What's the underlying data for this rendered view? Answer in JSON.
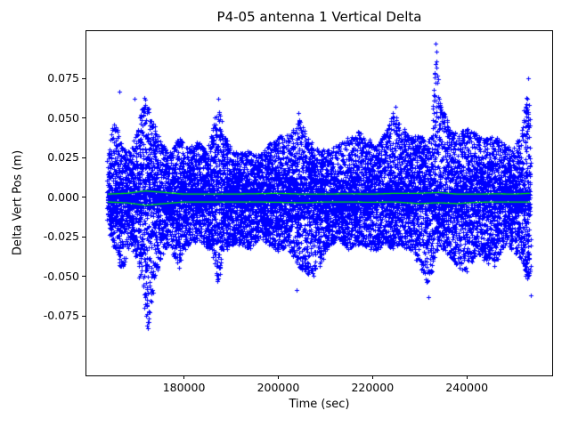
{
  "chart_data": {
    "type": "scatter",
    "title": "P4-05 antenna 1 Vertical Delta",
    "xlabel": "Time (sec)",
    "ylabel": "Delta Vert Pos (m)",
    "xlim": [
      159300,
      258100
    ],
    "ylim": [
      -0.1126,
      0.105
    ],
    "xticks": [
      180000,
      200000,
      220000,
      240000
    ],
    "xtick_labels": [
      "180000",
      "200000",
      "220000",
      "240000"
    ],
    "yticks": [
      -0.075,
      -0.05,
      -0.025,
      0.0,
      0.025,
      0.05,
      0.075
    ],
    "ytick_labels": [
      "-0.075",
      "-0.050",
      "-0.025",
      "0.000",
      "0.025",
      "0.050",
      "0.075"
    ],
    "marker": "+",
    "marker_color": "#0000ff",
    "smooth_line_color": "#00e400",
    "grid": false,
    "legend": "none",
    "t_range": [
      163800,
      253600
    ],
    "envelope": {
      "t": [
        163800,
        165000,
        166000,
        167000,
        168000,
        169000,
        170000,
        171000,
        172000,
        172600,
        173500,
        175000,
        177000,
        179000,
        181000,
        183000,
        185000,
        186500,
        187300,
        188500,
        190000,
        192000,
        194000,
        196000,
        198000,
        200000,
        202000,
        203500,
        204500,
        206000,
        207500,
        209000,
        211000,
        213000,
        215000,
        217000,
        219000,
        221000,
        223000,
        224500,
        226000,
        228000,
        230000,
        231500,
        232500,
        233500,
        234500,
        236000,
        238000,
        240000,
        242000,
        244000,
        246000,
        248000,
        250000,
        251500,
        253000,
        253600
      ],
      "up": [
        0.022,
        0.05,
        0.045,
        0.032,
        0.028,
        0.032,
        0.04,
        0.058,
        0.063,
        0.055,
        0.048,
        0.036,
        0.028,
        0.038,
        0.032,
        0.035,
        0.03,
        0.048,
        0.058,
        0.04,
        0.03,
        0.028,
        0.03,
        0.026,
        0.034,
        0.038,
        0.04,
        0.046,
        0.05,
        0.038,
        0.034,
        0.03,
        0.03,
        0.034,
        0.038,
        0.042,
        0.037,
        0.034,
        0.042,
        0.055,
        0.046,
        0.038,
        0.04,
        0.036,
        0.04,
        0.09,
        0.06,
        0.048,
        0.04,
        0.044,
        0.041,
        0.037,
        0.039,
        0.034,
        0.031,
        0.04,
        0.068,
        0.055
      ],
      "lo": [
        -0.018,
        -0.03,
        -0.04,
        -0.048,
        -0.035,
        -0.03,
        -0.04,
        -0.055,
        -0.078,
        -0.083,
        -0.06,
        -0.04,
        -0.03,
        -0.046,
        -0.03,
        -0.027,
        -0.032,
        -0.04,
        -0.056,
        -0.036,
        -0.03,
        -0.03,
        -0.033,
        -0.026,
        -0.03,
        -0.034,
        -0.032,
        -0.04,
        -0.044,
        -0.048,
        -0.05,
        -0.044,
        -0.03,
        -0.027,
        -0.033,
        -0.03,
        -0.032,
        -0.034,
        -0.03,
        -0.034,
        -0.03,
        -0.034,
        -0.042,
        -0.055,
        -0.05,
        -0.035,
        -0.032,
        -0.036,
        -0.044,
        -0.048,
        -0.036,
        -0.04,
        -0.044,
        -0.03,
        -0.034,
        -0.04,
        -0.055,
        -0.048
      ]
    },
    "outliers": [
      [
        166200,
        0.067
      ],
      [
        169500,
        0.062
      ],
      [
        171600,
        0.063
      ],
      [
        172300,
        -0.083
      ],
      [
        187300,
        0.062
      ],
      [
        203900,
        -0.0585
      ],
      [
        204200,
        0.053
      ],
      [
        224800,
        0.057
      ],
      [
        231900,
        -0.063
      ],
      [
        233400,
        0.097
      ],
      [
        233600,
        0.092
      ],
      [
        253000,
        0.075
      ],
      [
        253500,
        -0.062
      ]
    ],
    "smooth_lines": {
      "t": [
        163800,
        168000,
        172000,
        176000,
        180000,
        185000,
        190000,
        195000,
        200000,
        205000,
        210000,
        215000,
        220000,
        225000,
        230000,
        234000,
        238000,
        242000,
        246000,
        250000,
        253600
      ],
      "upper": [
        0.002,
        0.0025,
        0.004,
        0.003,
        0.002,
        0.002,
        0.002,
        0.0022,
        0.0025,
        0.002,
        0.002,
        0.0022,
        0.002,
        0.0025,
        0.0025,
        0.003,
        0.002,
        0.002,
        0.0022,
        0.002,
        0.0025
      ],
      "lower": [
        -0.003,
        -0.0035,
        -0.005,
        -0.004,
        -0.003,
        -0.003,
        -0.003,
        -0.003,
        -0.0032,
        -0.0035,
        -0.003,
        -0.003,
        -0.0032,
        -0.003,
        -0.004,
        -0.0035,
        -0.004,
        -0.0032,
        -0.003,
        -0.003,
        -0.003
      ]
    },
    "points_per_column": 26
  }
}
